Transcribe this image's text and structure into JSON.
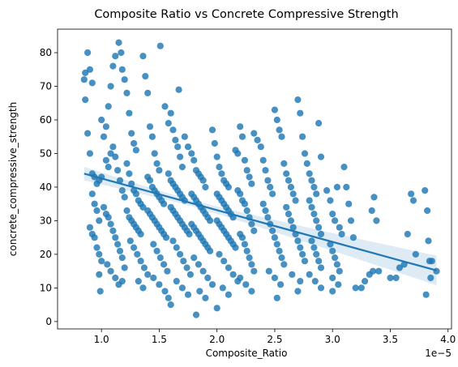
{
  "chart_data": {
    "type": "scatter",
    "title": "Composite Ratio vs Concrete Compressive Strength",
    "xlabel": "Composite_Ratio",
    "ylabel": "concrete_compressive_strength",
    "x_scale_label": "1e−5",
    "x_scale_factor": 1e-05,
    "xlim": [
      0.62,
      4.03
    ],
    "ylim": [
      -2.2,
      87
    ],
    "xticks": [
      1.0,
      1.5,
      2.0,
      2.5,
      3.0,
      3.5,
      4.0
    ],
    "xtick_labels": [
      "1.0",
      "1.5",
      "2.0",
      "2.5",
      "3.0",
      "3.5",
      "4.0"
    ],
    "yticks": [
      0,
      10,
      20,
      30,
      40,
      50,
      60,
      70,
      80
    ],
    "ytick_labels": [
      "0",
      "10",
      "20",
      "30",
      "40",
      "50",
      "60",
      "70",
      "80"
    ],
    "grid": false,
    "point_color": "#1f77b4",
    "regression": {
      "x": [
        0.85,
        3.9
      ],
      "y": [
        44.0,
        15.2
      ],
      "color": "#1f77b4",
      "ci_color": "#1f77b4"
    },
    "points": [
      [
        0.85,
        72
      ],
      [
        0.86,
        74
      ],
      [
        0.88,
        80
      ],
      [
        0.9,
        75
      ],
      [
        0.92,
        71
      ],
      [
        0.86,
        66
      ],
      [
        0.88,
        56
      ],
      [
        0.9,
        50
      ],
      [
        0.92,
        44
      ],
      [
        0.94,
        43
      ],
      [
        0.96,
        41
      ],
      [
        0.98,
        42
      ],
      [
        1.0,
        43
      ],
      [
        0.92,
        38
      ],
      [
        0.94,
        35
      ],
      [
        0.96,
        33
      ],
      [
        0.98,
        30
      ],
      [
        0.9,
        28
      ],
      [
        0.92,
        26
      ],
      [
        0.94,
        25
      ],
      [
        0.96,
        22
      ],
      [
        0.98,
        20
      ],
      [
        1.0,
        18
      ],
      [
        0.98,
        14
      ],
      [
        0.99,
        9
      ],
      [
        1.0,
        60
      ],
      [
        1.02,
        55
      ],
      [
        1.04,
        58
      ],
      [
        1.06,
        64
      ],
      [
        1.08,
        70
      ],
      [
        1.1,
        76
      ],
      [
        1.12,
        79
      ],
      [
        1.04,
        48
      ],
      [
        1.06,
        46
      ],
      [
        1.08,
        50
      ],
      [
        1.1,
        52
      ],
      [
        1.12,
        49
      ],
      [
        1.14,
        45
      ],
      [
        1.16,
        42
      ],
      [
        1.18,
        39
      ],
      [
        1.2,
        37
      ],
      [
        1.02,
        34
      ],
      [
        1.04,
        32
      ],
      [
        1.06,
        31
      ],
      [
        1.08,
        29
      ],
      [
        1.1,
        27
      ],
      [
        1.12,
        25
      ],
      [
        1.14,
        23
      ],
      [
        1.16,
        21
      ],
      [
        1.18,
        19
      ],
      [
        1.05,
        17
      ],
      [
        1.08,
        15
      ],
      [
        1.12,
        13
      ],
      [
        1.15,
        11
      ],
      [
        1.18,
        12
      ],
      [
        1.2,
        16
      ],
      [
        1.15,
        83
      ],
      [
        1.17,
        80
      ],
      [
        1.18,
        75
      ],
      [
        1.2,
        72
      ],
      [
        1.22,
        68
      ],
      [
        1.24,
        62
      ],
      [
        1.26,
        56
      ],
      [
        1.28,
        53
      ],
      [
        1.3,
        51
      ],
      [
        1.22,
        47
      ],
      [
        1.24,
        44
      ],
      [
        1.26,
        41
      ],
      [
        1.28,
        39
      ],
      [
        1.3,
        38
      ],
      [
        1.32,
        36
      ],
      [
        1.34,
        35
      ],
      [
        1.36,
        34
      ],
      [
        1.22,
        33
      ],
      [
        1.24,
        31
      ],
      [
        1.26,
        30
      ],
      [
        1.28,
        29
      ],
      [
        1.3,
        28
      ],
      [
        1.32,
        27
      ],
      [
        1.34,
        26
      ],
      [
        1.25,
        24
      ],
      [
        1.28,
        22
      ],
      [
        1.31,
        20
      ],
      [
        1.34,
        18
      ],
      [
        1.37,
        16
      ],
      [
        1.4,
        14
      ],
      [
        1.32,
        12
      ],
      [
        1.36,
        10
      ],
      [
        1.38,
        73
      ],
      [
        1.4,
        68
      ],
      [
        1.36,
        79
      ],
      [
        1.42,
        58
      ],
      [
        1.44,
        55
      ],
      [
        1.46,
        50
      ],
      [
        1.48,
        47
      ],
      [
        1.5,
        45
      ],
      [
        1.4,
        43
      ],
      [
        1.42,
        42
      ],
      [
        1.44,
        40
      ],
      [
        1.46,
        39
      ],
      [
        1.48,
        38
      ],
      [
        1.5,
        37
      ],
      [
        1.52,
        36
      ],
      [
        1.54,
        35
      ],
      [
        1.4,
        33
      ],
      [
        1.42,
        32
      ],
      [
        1.44,
        31
      ],
      [
        1.46,
        30
      ],
      [
        1.48,
        29
      ],
      [
        1.5,
        28
      ],
      [
        1.52,
        27
      ],
      [
        1.54,
        26
      ],
      [
        1.56,
        25
      ],
      [
        1.45,
        23
      ],
      [
        1.48,
        21
      ],
      [
        1.51,
        19
      ],
      [
        1.54,
        17
      ],
      [
        1.57,
        15
      ],
      [
        1.45,
        13
      ],
      [
        1.5,
        11
      ],
      [
        1.55,
        9
      ],
      [
        1.58,
        7
      ],
      [
        1.6,
        5
      ],
      [
        1.51,
        82
      ],
      [
        1.55,
        64
      ],
      [
        1.58,
        59
      ],
      [
        1.6,
        62
      ],
      [
        1.62,
        57
      ],
      [
        1.64,
        54
      ],
      [
        1.66,
        52
      ],
      [
        1.68,
        49
      ],
      [
        1.7,
        46
      ],
      [
        1.58,
        44
      ],
      [
        1.6,
        42
      ],
      [
        1.62,
        41
      ],
      [
        1.64,
        40
      ],
      [
        1.66,
        39
      ],
      [
        1.68,
        38
      ],
      [
        1.7,
        37
      ],
      [
        1.72,
        36
      ],
      [
        1.6,
        34
      ],
      [
        1.62,
        33
      ],
      [
        1.64,
        32
      ],
      [
        1.66,
        31
      ],
      [
        1.68,
        30
      ],
      [
        1.7,
        29
      ],
      [
        1.72,
        28
      ],
      [
        1.74,
        27
      ],
      [
        1.76,
        26
      ],
      [
        1.62,
        24
      ],
      [
        1.65,
        22
      ],
      [
        1.68,
        20
      ],
      [
        1.71,
        18
      ],
      [
        1.74,
        16
      ],
      [
        1.77,
        14
      ],
      [
        1.65,
        12
      ],
      [
        1.7,
        10
      ],
      [
        1.75,
        8
      ],
      [
        1.67,
        69
      ],
      [
        1.72,
        55
      ],
      [
        1.75,
        52
      ],
      [
        1.78,
        50
      ],
      [
        1.8,
        48
      ],
      [
        1.82,
        45
      ],
      [
        1.84,
        44
      ],
      [
        1.86,
        43
      ],
      [
        1.88,
        42
      ],
      [
        1.9,
        40
      ],
      [
        1.78,
        38
      ],
      [
        1.8,
        37
      ],
      [
        1.82,
        36
      ],
      [
        1.84,
        35
      ],
      [
        1.86,
        34
      ],
      [
        1.88,
        33
      ],
      [
        1.9,
        32
      ],
      [
        1.92,
        31
      ],
      [
        1.94,
        30
      ],
      [
        1.78,
        29
      ],
      [
        1.8,
        28
      ],
      [
        1.82,
        27
      ],
      [
        1.84,
        26
      ],
      [
        1.86,
        25
      ],
      [
        1.88,
        24
      ],
      [
        1.9,
        23
      ],
      [
        1.92,
        22
      ],
      [
        1.94,
        21
      ],
      [
        1.8,
        19
      ],
      [
        1.84,
        17
      ],
      [
        1.88,
        15
      ],
      [
        1.92,
        13
      ],
      [
        1.96,
        11
      ],
      [
        1.85,
        9
      ],
      [
        1.9,
        7
      ],
      [
        1.82,
        2
      ],
      [
        1.96,
        57
      ],
      [
        1.98,
        53
      ],
      [
        2.0,
        49
      ],
      [
        2.02,
        46
      ],
      [
        2.04,
        44
      ],
      [
        2.06,
        42
      ],
      [
        2.08,
        41
      ],
      [
        2.1,
        40
      ],
      [
        2.0,
        38
      ],
      [
        2.02,
        37
      ],
      [
        2.04,
        36
      ],
      [
        2.06,
        35
      ],
      [
        2.08,
        34
      ],
      [
        2.1,
        33
      ],
      [
        2.12,
        32
      ],
      [
        2.14,
        31
      ],
      [
        2.0,
        30
      ],
      [
        2.02,
        29
      ],
      [
        2.04,
        28
      ],
      [
        2.06,
        27
      ],
      [
        2.08,
        26
      ],
      [
        2.1,
        25
      ],
      [
        2.12,
        24
      ],
      [
        2.14,
        23
      ],
      [
        2.16,
        22
      ],
      [
        2.02,
        20
      ],
      [
        2.06,
        18
      ],
      [
        2.1,
        16
      ],
      [
        2.14,
        14
      ],
      [
        2.18,
        12
      ],
      [
        2.05,
        10
      ],
      [
        2.1,
        8
      ],
      [
        2.0,
        4
      ],
      [
        2.16,
        51
      ],
      [
        2.18,
        50
      ],
      [
        2.2,
        58
      ],
      [
        2.22,
        55
      ],
      [
        2.24,
        48
      ],
      [
        2.26,
        45
      ],
      [
        2.28,
        43
      ],
      [
        2.3,
        41
      ],
      [
        2.18,
        39
      ],
      [
        2.2,
        38
      ],
      [
        2.22,
        36
      ],
      [
        2.24,
        35
      ],
      [
        2.26,
        33
      ],
      [
        2.28,
        31
      ],
      [
        2.3,
        29
      ],
      [
        2.32,
        27
      ],
      [
        2.2,
        26
      ],
      [
        2.22,
        25
      ],
      [
        2.24,
        23
      ],
      [
        2.26,
        21
      ],
      [
        2.28,
        19
      ],
      [
        2.3,
        17
      ],
      [
        2.32,
        15
      ],
      [
        2.2,
        13
      ],
      [
        2.25,
        11
      ],
      [
        2.3,
        9
      ],
      [
        2.32,
        56
      ],
      [
        2.35,
        54
      ],
      [
        2.38,
        52
      ],
      [
        2.4,
        48
      ],
      [
        2.42,
        45
      ],
      [
        2.44,
        42
      ],
      [
        2.46,
        40
      ],
      [
        2.48,
        38
      ],
      [
        2.5,
        63
      ],
      [
        2.52,
        60
      ],
      [
        2.54,
        57
      ],
      [
        2.56,
        55
      ],
      [
        2.4,
        35
      ],
      [
        2.42,
        33
      ],
      [
        2.44,
        31
      ],
      [
        2.46,
        29
      ],
      [
        2.48,
        27
      ],
      [
        2.5,
        25
      ],
      [
        2.52,
        23
      ],
      [
        2.54,
        21
      ],
      [
        2.56,
        19
      ],
      [
        2.58,
        17
      ],
      [
        2.45,
        15
      ],
      [
        2.5,
        13
      ],
      [
        2.55,
        11
      ],
      [
        2.52,
        7
      ],
      [
        2.58,
        47
      ],
      [
        2.6,
        44
      ],
      [
        2.62,
        42
      ],
      [
        2.64,
        40
      ],
      [
        2.66,
        38
      ],
      [
        2.68,
        36
      ],
      [
        2.7,
        66
      ],
      [
        2.72,
        62
      ],
      [
        2.74,
        55
      ],
      [
        2.76,
        50
      ],
      [
        2.6,
        34
      ],
      [
        2.62,
        32
      ],
      [
        2.64,
        30
      ],
      [
        2.66,
        28
      ],
      [
        2.68,
        26
      ],
      [
        2.7,
        24
      ],
      [
        2.72,
        22
      ],
      [
        2.74,
        20
      ],
      [
        2.76,
        18
      ],
      [
        2.65,
        14
      ],
      [
        2.7,
        9
      ],
      [
        2.72,
        12
      ],
      [
        2.78,
        47
      ],
      [
        2.8,
        44
      ],
      [
        2.82,
        42
      ],
      [
        2.84,
        40
      ],
      [
        2.86,
        38
      ],
      [
        2.88,
        59
      ],
      [
        2.9,
        49
      ],
      [
        2.8,
        36
      ],
      [
        2.82,
        34
      ],
      [
        2.84,
        32
      ],
      [
        2.86,
        30
      ],
      [
        2.88,
        28
      ],
      [
        2.9,
        26
      ],
      [
        2.82,
        24
      ],
      [
        2.84,
        22
      ],
      [
        2.86,
        20
      ],
      [
        2.88,
        18
      ],
      [
        2.9,
        16
      ],
      [
        2.8,
        14
      ],
      [
        2.85,
        12
      ],
      [
        2.9,
        10
      ],
      [
        2.95,
        39
      ],
      [
        2.98,
        36
      ],
      [
        3.0,
        32
      ],
      [
        3.02,
        30
      ],
      [
        3.04,
        40
      ],
      [
        3.06,
        28
      ],
      [
        3.08,
        26
      ],
      [
        2.98,
        23
      ],
      [
        3.0,
        21
      ],
      [
        3.02,
        19
      ],
      [
        3.04,
        17
      ],
      [
        3.06,
        15
      ],
      [
        3.0,
        13
      ],
      [
        3.05,
        11
      ],
      [
        3.0,
        9
      ],
      [
        3.1,
        46
      ],
      [
        3.12,
        40
      ],
      [
        3.14,
        35
      ],
      [
        3.16,
        30
      ],
      [
        3.18,
        25
      ],
      [
        3.2,
        10
      ],
      [
        3.25,
        10
      ],
      [
        3.28,
        12
      ],
      [
        3.32,
        14
      ],
      [
        3.34,
        33
      ],
      [
        3.36,
        37
      ],
      [
        3.38,
        30
      ],
      [
        3.35,
        15
      ],
      [
        3.4,
        15
      ],
      [
        3.5,
        13
      ],
      [
        3.55,
        13
      ],
      [
        3.58,
        16
      ],
      [
        3.62,
        17
      ],
      [
        3.65,
        26
      ],
      [
        3.68,
        38
      ],
      [
        3.7,
        36
      ],
      [
        3.72,
        20
      ],
      [
        3.8,
        39
      ],
      [
        3.82,
        33
      ],
      [
        3.83,
        24
      ],
      [
        3.84,
        18
      ],
      [
        3.86,
        18
      ],
      [
        3.85,
        13
      ],
      [
        3.81,
        8
      ],
      [
        3.9,
        15
      ]
    ]
  }
}
